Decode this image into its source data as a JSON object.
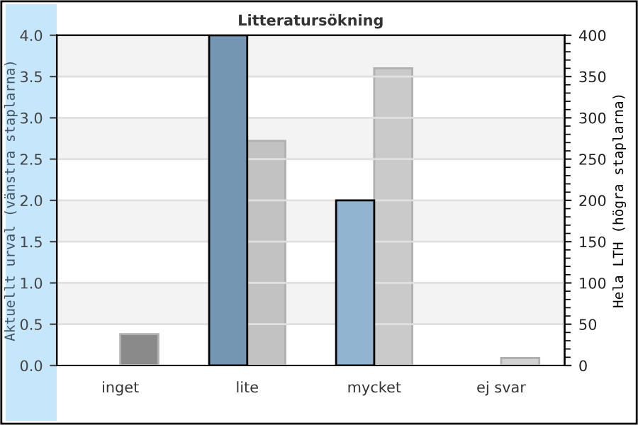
{
  "chart_data": {
    "type": "bar",
    "title": "Litteratursökning",
    "ylabel": "Aktuellt urval (vänstra staplarna)",
    "y2label": "Hela LTH (högra staplarna)",
    "categories": [
      "inget",
      "lite",
      "mycket",
      "ej svar"
    ],
    "series": [
      {
        "colors": [
          "#7496b2",
          "#7496b2",
          "#91b4d0",
          "#91b4d0"
        ],
        "values": [
          0,
          4,
          2,
          0
        ]
      },
      {
        "axis": "y2",
        "colors": [
          "#8a8a8a",
          "#c2c2c2",
          "#cacaca",
          "#d2d2d2"
        ],
        "values": [
          38,
          272,
          360,
          9
        ]
      }
    ],
    "ylim": [
      0,
      4
    ],
    "yticks": [
      {
        "value": 0,
        "label": "0.0"
      },
      {
        "value": 0.5,
        "label": "0.5"
      },
      {
        "value": 1,
        "label": "1.0"
      },
      {
        "value": 1.5,
        "label": "1.5"
      },
      {
        "value": 2,
        "label": "2.0"
      },
      {
        "value": 2.5,
        "label": "2.5"
      },
      {
        "value": 3,
        "label": "3.0"
      },
      {
        "value": 3.5,
        "label": "3.5"
      },
      {
        "value": 4,
        "label": "4.0"
      }
    ],
    "y2lim": [
      0,
      400
    ],
    "y2ticks": [
      0,
      50,
      100,
      150,
      200,
      250,
      300,
      350,
      400
    ],
    "grid": "y",
    "legend": false
  }
}
